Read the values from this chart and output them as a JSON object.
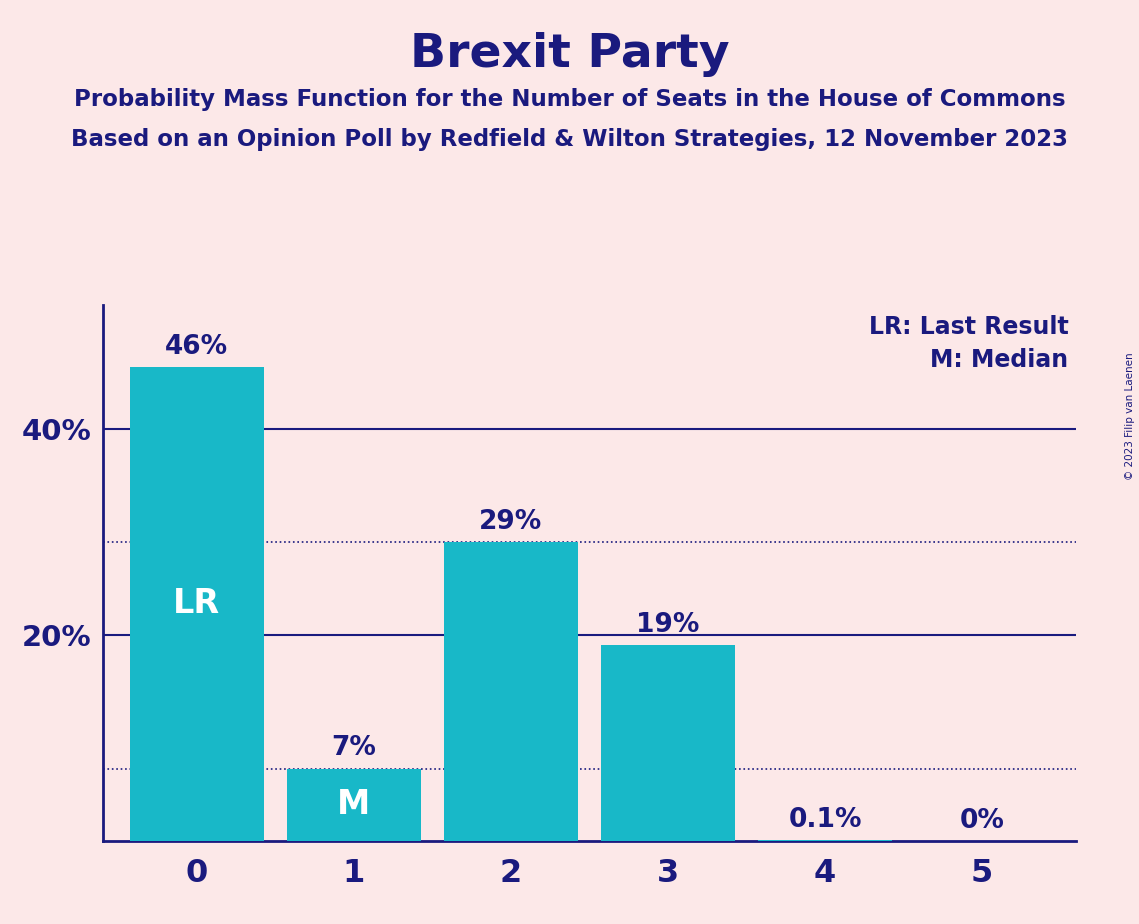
{
  "title": "Brexit Party",
  "subtitle1": "Probability Mass Function for the Number of Seats in the House of Commons",
  "subtitle2": "Based on an Opinion Poll by Redfield & Wilton Strategies, 12 November 2023",
  "copyright": "© 2023 Filip van Laenen",
  "categories": [
    0,
    1,
    2,
    3,
    4,
    5
  ],
  "values": [
    46,
    7,
    29,
    19,
    0.1,
    0
  ],
  "bar_color": "#18b8c8",
  "background_color": "#fce8e8",
  "title_color": "#1a1a7e",
  "axis_color": "#1a1a7e",
  "label_color": "#1a1a7e",
  "bar_label_color_outside": "#1a1a7e",
  "bar_label_color_inside": "#ffffff",
  "solid_hlines": [
    20,
    40
  ],
  "dotted_hlines": [
    7,
    29
  ],
  "legend_lr": "LR: Last Result",
  "legend_m": "M: Median",
  "bar_labels": [
    "46%",
    "7%",
    "29%",
    "19%",
    "0.1%",
    "0%"
  ],
  "ylim": [
    0,
    52
  ]
}
